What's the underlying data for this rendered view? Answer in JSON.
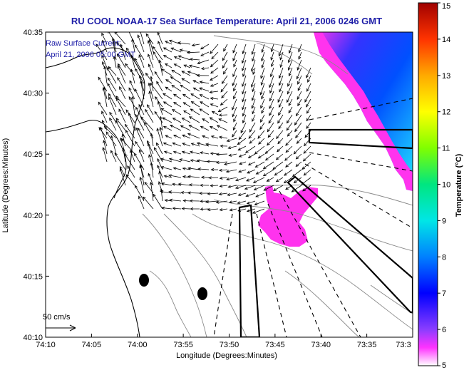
{
  "title": "RU COOL  NOAA-17  Sea Surface Temperature:  April 21, 2006 0246 GMT",
  "legend": {
    "line1": "Raw Surface Current:",
    "line2": "April 21, 2006 05:00 GMT",
    "scale_label": "50 cm/s"
  },
  "x_axis": {
    "label": "Longitude (Degrees:Minutes)",
    "ticks": [
      "74:10",
      "74:05",
      "74:00",
      "73:55",
      "73:50",
      "73:45",
      "73:40",
      "73:35",
      "73:3"
    ]
  },
  "y_axis": {
    "label": "Latitude (Degrees:Minutes)",
    "ticks": [
      "40:35",
      "40:30",
      "40:25",
      "40:20",
      "40:15",
      "40:10"
    ]
  },
  "colorbar": {
    "label": "Temperature (°C)",
    "ticks": [
      "15",
      "14",
      "13",
      "12",
      "11",
      "10",
      "9",
      "8",
      "7",
      "6",
      "5"
    ],
    "min": 5,
    "max": 15
  },
  "colors": {
    "title": "#1f1fa8",
    "land": "#ffffff",
    "sst_warm_patch": "#ff33ee",
    "sst_cold_blue": "#1a4dff",
    "sst_cyan": "#22e8ff"
  }
}
